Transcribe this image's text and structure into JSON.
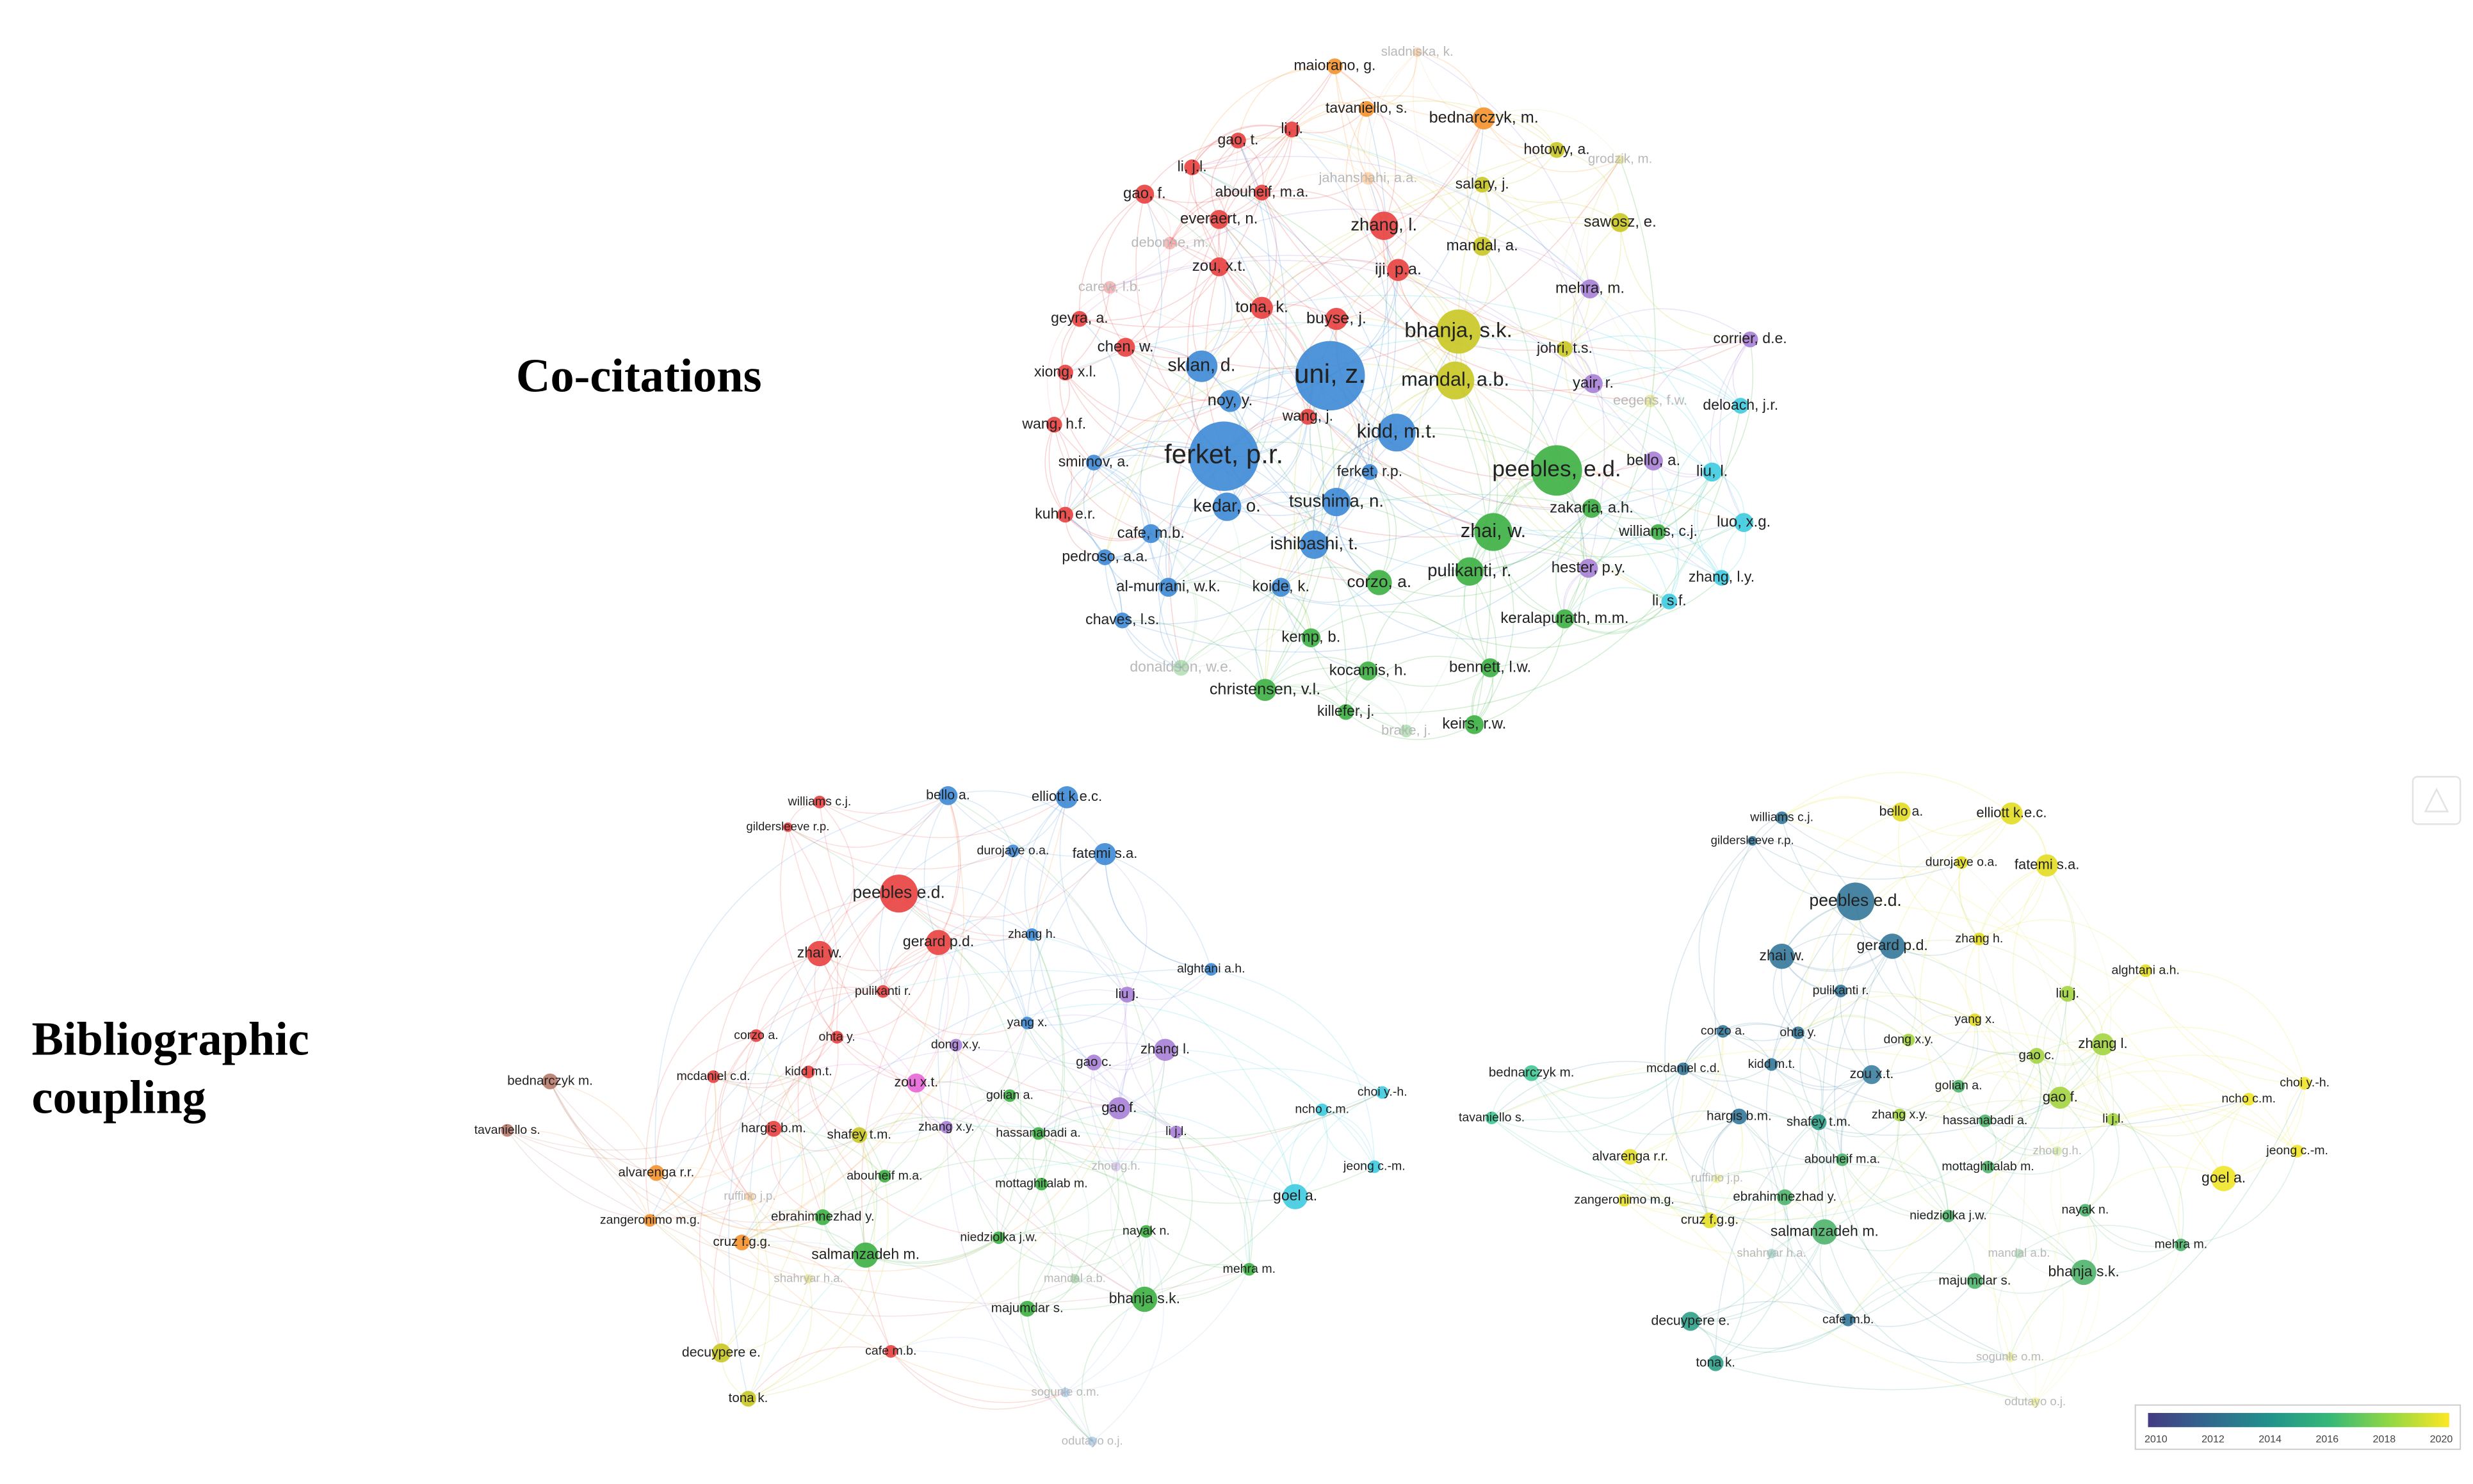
{
  "co_citations": {
    "title": "Co-citations",
    "nodes": [
      "sladniska, k.",
      "maiorano, g.",
      "tavaniello, s.",
      "bednarczyk, m.",
      "li, j.",
      "gao, t.",
      "hotowy, a.",
      "grodzik, m.",
      "li, j.l.",
      "jahanshahi, a.a.",
      "salary, j.",
      "gao, f.",
      "abouheif, m.a.",
      "everaert, n.",
      "zhang, l.",
      "sawosz, e.",
      "debonne, m.",
      "mandal, a.",
      "zou, x.t.",
      "iji, p.a.",
      "carew, l.b.",
      "mehra, m.",
      "tona, k.",
      "buyse, j.",
      "geyra, a.",
      "bhanja, s.k.",
      "corrier, d.e.",
      "chen, w.",
      "johri, t.s.",
      "xiong, x.l.",
      "sklan, d.",
      "uni, z.",
      "mandal, a.b.",
      "yair, r.",
      "noy, y.",
      "eegens, f.w.",
      "deloach, j.r.",
      "wang, j.",
      "wang, h.f.",
      "kidd, m.t.",
      "ferket, p.r.",
      "smirnov, a.",
      "peebles, e.d.",
      "bello, a.",
      "ferket, r.p.",
      "liu, l.",
      "kedar, o.",
      "tsushima, n.",
      "zakaria, a.h.",
      "kuhn, e.r.",
      "luo, x.g.",
      "zhai, w.",
      "williams, c.j.",
      "cafe, m.b.",
      "ishibashi, t.",
      "pedroso, a.a.",
      "hester, p.y.",
      "pulikanti, r.",
      "zhang, l.y.",
      "al-murrani, w.k.",
      "koide, k.",
      "corzo, a.",
      "li, s.f.",
      "chaves, l.s.",
      "keralapurath, m.m.",
      "kemp, b.",
      "donaldson, w.e.",
      "kocamis, h.",
      "bennett, l.w.",
      "christensen, v.l.",
      "killefer, j.",
      "brake, j.",
      "keirs, r.w."
    ]
  },
  "bibliographic_coupling": {
    "title": "Bibliographic coupling",
    "nodes": [
      "williams c.j.",
      "bello a.",
      "elliott k.e.c.",
      "gildersleeve r.p.",
      "durojaye o.a.",
      "fatemi s.a.",
      "peebles e.d.",
      "zhang h.",
      "gerard p.d.",
      "zhai w.",
      "alghtani a.h.",
      "pulikanti r.",
      "liu j.",
      "yang x.",
      "corzo a.",
      "ohta y.",
      "dong x.y.",
      "zhang l.",
      "choi y.-h.",
      "gao c.",
      "kidd m.t.",
      "mcdaniel c.d.",
      "bednarczyk m.",
      "zou x.t.",
      "golian a.",
      "gao f.",
      "ncho c.m.",
      "hargis b.m.",
      "shafey t.m.",
      "zhang x.y.",
      "hassanabadi a.",
      "li j.l.",
      "tavaniello s.",
      "jeong c.-m.",
      "alvarenga r.r.",
      "abouheif m.a.",
      "mottaghitalab m.",
      "goel a.",
      "ebrahimnezhad y.",
      "zangeronimo m.g.",
      "nayak n.",
      "niedziolka j.w.",
      "cruz f.g.g.",
      "salmanzadeh m.",
      "mehra m.",
      "bhanja s.k.",
      "majumdar s.",
      "decuypere e.",
      "cafe m.b.",
      "tona k.",
      "sogunle o.m.",
      "odutayo o.j.",
      "shahryar h.a.",
      "mandal a.b.",
      "zhou g.h.",
      "ruffino j.p."
    ],
    "overlay_legend": [
      2010,
      2012,
      2014,
      2016,
      2018,
      2020
    ]
  }
}
